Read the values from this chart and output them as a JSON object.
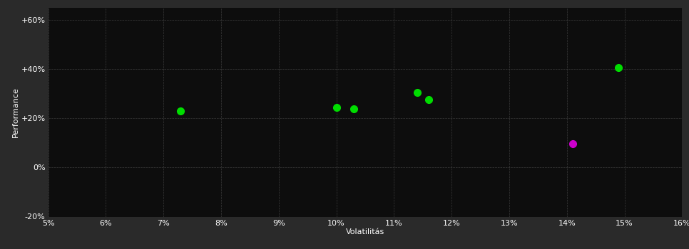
{
  "background_color": "#2a2a2a",
  "plot_bg_color": "#0d0d0d",
  "grid_color": "#3a3a3a",
  "text_color": "#ffffff",
  "xlabel": "Volatilitás",
  "ylabel": "Performance",
  "xlim": [
    0.05,
    0.16
  ],
  "ylim": [
    -0.2,
    0.65
  ],
  "xticks": [
    0.05,
    0.06,
    0.07,
    0.08,
    0.09,
    0.1,
    0.11,
    0.12,
    0.13,
    0.14,
    0.15,
    0.16
  ],
  "yticks": [
    -0.2,
    0.0,
    0.2,
    0.4,
    0.6
  ],
  "green_points": [
    [
      0.073,
      0.23
    ],
    [
      0.1,
      0.245
    ],
    [
      0.103,
      0.238
    ],
    [
      0.114,
      0.305
    ],
    [
      0.116,
      0.275
    ],
    [
      0.149,
      0.405
    ]
  ],
  "magenta_points": [
    [
      0.141,
      0.095
    ]
  ],
  "green_color": "#00dd00",
  "magenta_color": "#cc00cc",
  "marker_size": 7
}
